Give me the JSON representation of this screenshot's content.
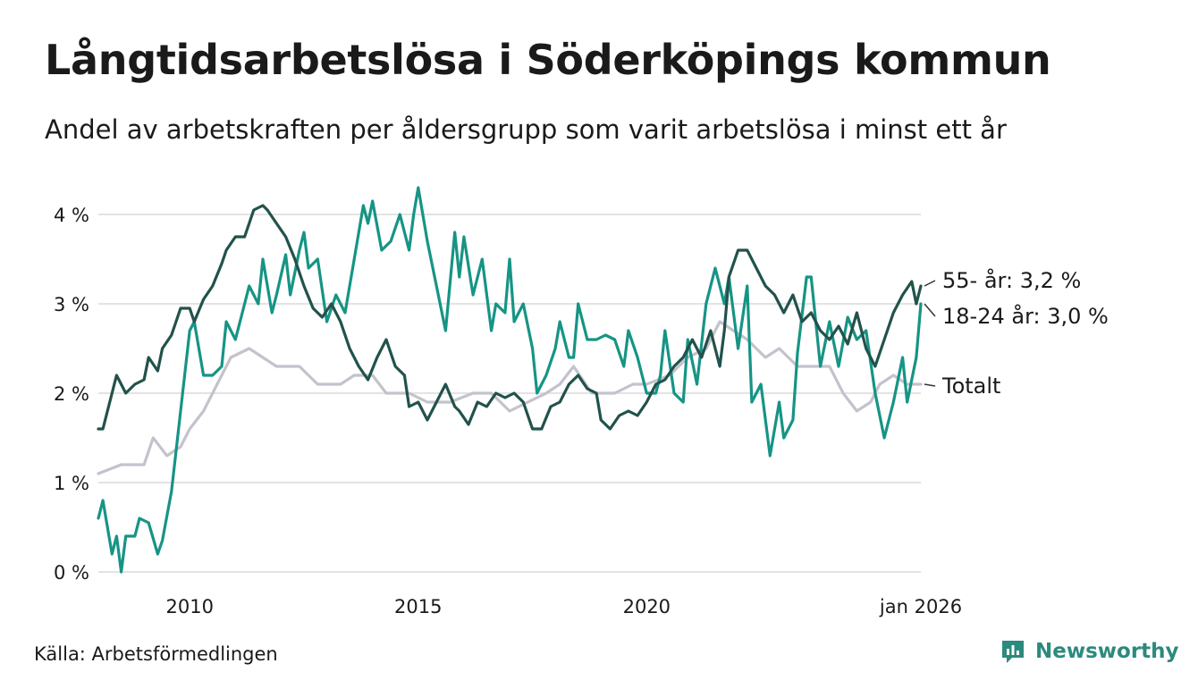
{
  "title": "Långtidsarbetslösa i Söderköpings kommun",
  "subtitle": "Andel av arbetskraften per åldersgrupp som varit arbetslösa i minst ett år",
  "source": "Källa: Arbetsförmedlingen",
  "brand": "Newsworthy",
  "chart_data": {
    "type": "line",
    "title": "Långtidsarbetslösa i Söderköpings kommun",
    "xlabel": "",
    "ylabel": "",
    "xlim": [
      2008.0,
      2026.0
    ],
    "ylim": [
      0,
      4
    ],
    "y_ticks": [
      0,
      1,
      2,
      3,
      4
    ],
    "y_tick_labels": [
      "0 %",
      "1 %",
      "2 %",
      "3 %",
      "4 %"
    ],
    "x_ticks": [
      2010,
      2015,
      2020,
      2026
    ],
    "x_tick_labels": [
      "2010",
      "2015",
      "2020",
      "jan 2026"
    ],
    "grid": true,
    "legend": "direct-labels-right",
    "colors": {
      "older": "#22524b",
      "young": "#169485",
      "total": "#c4c2cc",
      "grid": "#e3e3e3"
    },
    "series": [
      {
        "key": "total",
        "name": "Totalt",
        "label": "Totalt",
        "points": [
          [
            2008.0,
            1.1
          ],
          [
            2008.5,
            1.2
          ],
          [
            2009.0,
            1.2
          ],
          [
            2009.2,
            1.5
          ],
          [
            2009.5,
            1.3
          ],
          [
            2009.8,
            1.4
          ],
          [
            2010.0,
            1.6
          ],
          [
            2010.3,
            1.8
          ],
          [
            2010.6,
            2.1
          ],
          [
            2010.9,
            2.4
          ],
          [
            2011.3,
            2.5
          ],
          [
            2011.6,
            2.4
          ],
          [
            2011.9,
            2.3
          ],
          [
            2012.4,
            2.3
          ],
          [
            2012.8,
            2.1
          ],
          [
            2013.3,
            2.1
          ],
          [
            2013.6,
            2.2
          ],
          [
            2014.0,
            2.2
          ],
          [
            2014.3,
            2.0
          ],
          [
            2014.8,
            2.0
          ],
          [
            2015.2,
            1.9
          ],
          [
            2015.7,
            1.9
          ],
          [
            2016.2,
            2.0
          ],
          [
            2016.6,
            2.0
          ],
          [
            2017.0,
            1.8
          ],
          [
            2017.4,
            1.9
          ],
          [
            2017.8,
            2.0
          ],
          [
            2018.1,
            2.1
          ],
          [
            2018.4,
            2.3
          ],
          [
            2018.8,
            2.0
          ],
          [
            2019.3,
            2.0
          ],
          [
            2019.7,
            2.1
          ],
          [
            2020.0,
            2.1
          ],
          [
            2020.5,
            2.2
          ],
          [
            2020.9,
            2.4
          ],
          [
            2021.3,
            2.5
          ],
          [
            2021.6,
            2.8
          ],
          [
            2021.9,
            2.7
          ],
          [
            2022.2,
            2.6
          ],
          [
            2022.6,
            2.4
          ],
          [
            2022.9,
            2.5
          ],
          [
            2023.3,
            2.3
          ],
          [
            2023.7,
            2.3
          ],
          [
            2024.0,
            2.3
          ],
          [
            2024.3,
            2.0
          ],
          [
            2024.6,
            1.8
          ],
          [
            2024.9,
            1.9
          ],
          [
            2025.1,
            2.1
          ],
          [
            2025.4,
            2.2
          ],
          [
            2025.7,
            2.1
          ],
          [
            2026.0,
            2.1
          ]
        ]
      },
      {
        "key": "young",
        "name": "18-24 år",
        "label": "18-24 år: 3,0 %",
        "points": [
          [
            2008.0,
            0.6
          ],
          [
            2008.1,
            0.8
          ],
          [
            2008.3,
            0.2
          ],
          [
            2008.4,
            0.4
          ],
          [
            2008.5,
            0.0
          ],
          [
            2008.6,
            0.4
          ],
          [
            2008.8,
            0.4
          ],
          [
            2008.9,
            0.6
          ],
          [
            2009.1,
            0.55
          ],
          [
            2009.3,
            0.2
          ],
          [
            2009.4,
            0.35
          ],
          [
            2009.6,
            0.9
          ],
          [
            2009.8,
            1.8
          ],
          [
            2010.0,
            2.7
          ],
          [
            2010.1,
            2.8
          ],
          [
            2010.3,
            2.2
          ],
          [
            2010.5,
            2.2
          ],
          [
            2010.7,
            2.3
          ],
          [
            2010.8,
            2.8
          ],
          [
            2011.0,
            2.6
          ],
          [
            2011.2,
            3.0
          ],
          [
            2011.3,
            3.2
          ],
          [
            2011.5,
            3.0
          ],
          [
            2011.6,
            3.5
          ],
          [
            2011.8,
            2.9
          ],
          [
            2011.9,
            3.1
          ],
          [
            2012.1,
            3.55
          ],
          [
            2012.2,
            3.1
          ],
          [
            2012.4,
            3.6
          ],
          [
            2012.5,
            3.8
          ],
          [
            2012.6,
            3.4
          ],
          [
            2012.8,
            3.5
          ],
          [
            2013.0,
            2.8
          ],
          [
            2013.2,
            3.1
          ],
          [
            2013.4,
            2.9
          ],
          [
            2013.6,
            3.5
          ],
          [
            2013.8,
            4.1
          ],
          [
            2013.9,
            3.9
          ],
          [
            2014.0,
            4.15
          ],
          [
            2014.2,
            3.6
          ],
          [
            2014.4,
            3.7
          ],
          [
            2014.6,
            4.0
          ],
          [
            2014.8,
            3.6
          ],
          [
            2014.9,
            4.0
          ],
          [
            2015.0,
            4.3
          ],
          [
            2015.2,
            3.7
          ],
          [
            2015.4,
            3.2
          ],
          [
            2015.6,
            2.7
          ],
          [
            2015.8,
            3.8
          ],
          [
            2015.9,
            3.3
          ],
          [
            2016.0,
            3.75
          ],
          [
            2016.2,
            3.1
          ],
          [
            2016.4,
            3.5
          ],
          [
            2016.6,
            2.7
          ],
          [
            2016.7,
            3.0
          ],
          [
            2016.9,
            2.9
          ],
          [
            2017.0,
            3.5
          ],
          [
            2017.1,
            2.8
          ],
          [
            2017.3,
            3.0
          ],
          [
            2017.5,
            2.5
          ],
          [
            2017.6,
            2.0
          ],
          [
            2017.8,
            2.2
          ],
          [
            2018.0,
            2.5
          ],
          [
            2018.1,
            2.8
          ],
          [
            2018.3,
            2.4
          ],
          [
            2018.4,
            2.4
          ],
          [
            2018.5,
            3.0
          ],
          [
            2018.7,
            2.6
          ],
          [
            2018.9,
            2.6
          ],
          [
            2019.1,
            2.65
          ],
          [
            2019.3,
            2.6
          ],
          [
            2019.5,
            2.3
          ],
          [
            2019.6,
            2.7
          ],
          [
            2019.8,
            2.4
          ],
          [
            2020.0,
            2.0
          ],
          [
            2020.2,
            2.0
          ],
          [
            2020.3,
            2.2
          ],
          [
            2020.4,
            2.7
          ],
          [
            2020.6,
            2.0
          ],
          [
            2020.8,
            1.9
          ],
          [
            2020.9,
            2.6
          ],
          [
            2021.1,
            2.1
          ],
          [
            2021.3,
            3.0
          ],
          [
            2021.5,
            3.4
          ],
          [
            2021.7,
            3.0
          ],
          [
            2021.8,
            3.3
          ],
          [
            2022.0,
            2.5
          ],
          [
            2022.2,
            3.2
          ],
          [
            2022.3,
            1.9
          ],
          [
            2022.5,
            2.1
          ],
          [
            2022.7,
            1.3
          ],
          [
            2022.9,
            1.9
          ],
          [
            2023.0,
            1.5
          ],
          [
            2023.2,
            1.7
          ],
          [
            2023.3,
            2.45
          ],
          [
            2023.5,
            3.3
          ],
          [
            2023.6,
            3.3
          ],
          [
            2023.8,
            2.3
          ],
          [
            2024.0,
            2.8
          ],
          [
            2024.2,
            2.3
          ],
          [
            2024.4,
            2.85
          ],
          [
            2024.6,
            2.6
          ],
          [
            2024.8,
            2.7
          ],
          [
            2025.0,
            2.0
          ],
          [
            2025.2,
            1.5
          ],
          [
            2025.4,
            1.9
          ],
          [
            2025.6,
            2.4
          ],
          [
            2025.7,
            1.9
          ],
          [
            2025.9,
            2.4
          ],
          [
            2026.0,
            3.0
          ]
        ]
      },
      {
        "key": "older",
        "name": "55- år",
        "label": "55- år: 3,2 %",
        "points": [
          [
            2008.0,
            1.6
          ],
          [
            2008.1,
            1.6
          ],
          [
            2008.3,
            2.0
          ],
          [
            2008.4,
            2.2
          ],
          [
            2008.6,
            2.0
          ],
          [
            2008.8,
            2.1
          ],
          [
            2009.0,
            2.15
          ],
          [
            2009.1,
            2.4
          ],
          [
            2009.3,
            2.25
          ],
          [
            2009.4,
            2.5
          ],
          [
            2009.6,
            2.65
          ],
          [
            2009.8,
            2.95
          ],
          [
            2010.0,
            2.95
          ],
          [
            2010.1,
            2.8
          ],
          [
            2010.3,
            3.05
          ],
          [
            2010.5,
            3.2
          ],
          [
            2010.7,
            3.45
          ],
          [
            2010.8,
            3.6
          ],
          [
            2011.0,
            3.75
          ],
          [
            2011.2,
            3.75
          ],
          [
            2011.4,
            4.05
          ],
          [
            2011.6,
            4.1
          ],
          [
            2011.7,
            4.05
          ],
          [
            2011.9,
            3.9
          ],
          [
            2012.1,
            3.75
          ],
          [
            2012.3,
            3.5
          ],
          [
            2012.5,
            3.2
          ],
          [
            2012.7,
            2.95
          ],
          [
            2012.9,
            2.85
          ],
          [
            2013.1,
            3.0
          ],
          [
            2013.3,
            2.8
          ],
          [
            2013.5,
            2.5
          ],
          [
            2013.7,
            2.3
          ],
          [
            2013.9,
            2.15
          ],
          [
            2014.1,
            2.4
          ],
          [
            2014.3,
            2.6
          ],
          [
            2014.5,
            2.3
          ],
          [
            2014.7,
            2.2
          ],
          [
            2014.8,
            1.85
          ],
          [
            2015.0,
            1.9
          ],
          [
            2015.2,
            1.7
          ],
          [
            2015.4,
            1.9
          ],
          [
            2015.6,
            2.1
          ],
          [
            2015.8,
            1.85
          ],
          [
            2015.9,
            1.8
          ],
          [
            2016.1,
            1.65
          ],
          [
            2016.3,
            1.9
          ],
          [
            2016.5,
            1.85
          ],
          [
            2016.7,
            2.0
          ],
          [
            2016.9,
            1.95
          ],
          [
            2017.1,
            2.0
          ],
          [
            2017.3,
            1.9
          ],
          [
            2017.5,
            1.6
          ],
          [
            2017.7,
            1.6
          ],
          [
            2017.9,
            1.85
          ],
          [
            2018.1,
            1.9
          ],
          [
            2018.3,
            2.1
          ],
          [
            2018.5,
            2.2
          ],
          [
            2018.7,
            2.05
          ],
          [
            2018.9,
            2.0
          ],
          [
            2019.0,
            1.7
          ],
          [
            2019.2,
            1.6
          ],
          [
            2019.4,
            1.75
          ],
          [
            2019.6,
            1.8
          ],
          [
            2019.8,
            1.75
          ],
          [
            2020.0,
            1.9
          ],
          [
            2020.2,
            2.1
          ],
          [
            2020.4,
            2.15
          ],
          [
            2020.6,
            2.3
          ],
          [
            2020.8,
            2.4
          ],
          [
            2021.0,
            2.6
          ],
          [
            2021.2,
            2.4
          ],
          [
            2021.4,
            2.7
          ],
          [
            2021.6,
            2.3
          ],
          [
            2021.7,
            2.7
          ],
          [
            2021.8,
            3.3
          ],
          [
            2022.0,
            3.6
          ],
          [
            2022.2,
            3.6
          ],
          [
            2022.4,
            3.4
          ],
          [
            2022.6,
            3.2
          ],
          [
            2022.8,
            3.1
          ],
          [
            2023.0,
            2.9
          ],
          [
            2023.2,
            3.1
          ],
          [
            2023.4,
            2.8
          ],
          [
            2023.6,
            2.9
          ],
          [
            2023.8,
            2.7
          ],
          [
            2024.0,
            2.6
          ],
          [
            2024.2,
            2.75
          ],
          [
            2024.4,
            2.55
          ],
          [
            2024.6,
            2.9
          ],
          [
            2024.8,
            2.5
          ],
          [
            2025.0,
            2.3
          ],
          [
            2025.2,
            2.6
          ],
          [
            2025.4,
            2.9
          ],
          [
            2025.6,
            3.1
          ],
          [
            2025.8,
            3.25
          ],
          [
            2025.9,
            3.0
          ],
          [
            2026.0,
            3.2
          ]
        ]
      }
    ]
  }
}
